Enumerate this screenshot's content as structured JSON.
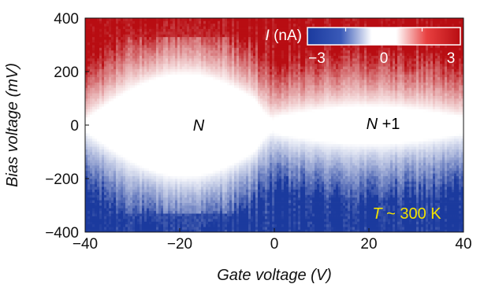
{
  "chart_data": {
    "type": "heatmap",
    "xlabel": "Gate voltage (V)",
    "ylabel": "Bias voltage (mV)",
    "xlim": [
      -40,
      40
    ],
    "ylim": [
      -400,
      400
    ],
    "x_ticks": [
      "−40",
      "−20",
      "0",
      "20",
      "40"
    ],
    "x_tick_values": [
      -40,
      -20,
      0,
      20,
      40
    ],
    "y_ticks": [
      "400",
      "200",
      "0",
      "−200",
      "−400"
    ],
    "y_tick_values": [
      400,
      200,
      0,
      -200,
      -400
    ],
    "colorbar": {
      "title_italic": "I",
      "title_unit": " (nA)",
      "range": [
        -3,
        3
      ],
      "ticks": [
        "−3",
        "0",
        "3"
      ],
      "tick_values": [
        -3,
        0,
        3
      ],
      "colors": {
        "negative": "#1b3a9e",
        "zero": "#ffffff",
        "positive": "#b80d12"
      }
    },
    "annotations": [
      {
        "text": "N",
        "x": -16,
        "y": -20
      },
      {
        "text": "N +1",
        "x": 23,
        "y": -15
      },
      {
        "text": "T ~ 300 K",
        "x": 28,
        "y": -350
      }
    ],
    "regions": [
      {
        "name": "N",
        "gate_range": [
          -40,
          0
        ],
        "blockade_half_width_mV": [
          0,
          190
        ]
      },
      {
        "name": "N +1",
        "gate_range": [
          0,
          40
        ],
        "blockade_half_width_mV": [
          30,
          70
        ]
      }
    ],
    "current_range_nA": [
      -3,
      3
    ]
  }
}
